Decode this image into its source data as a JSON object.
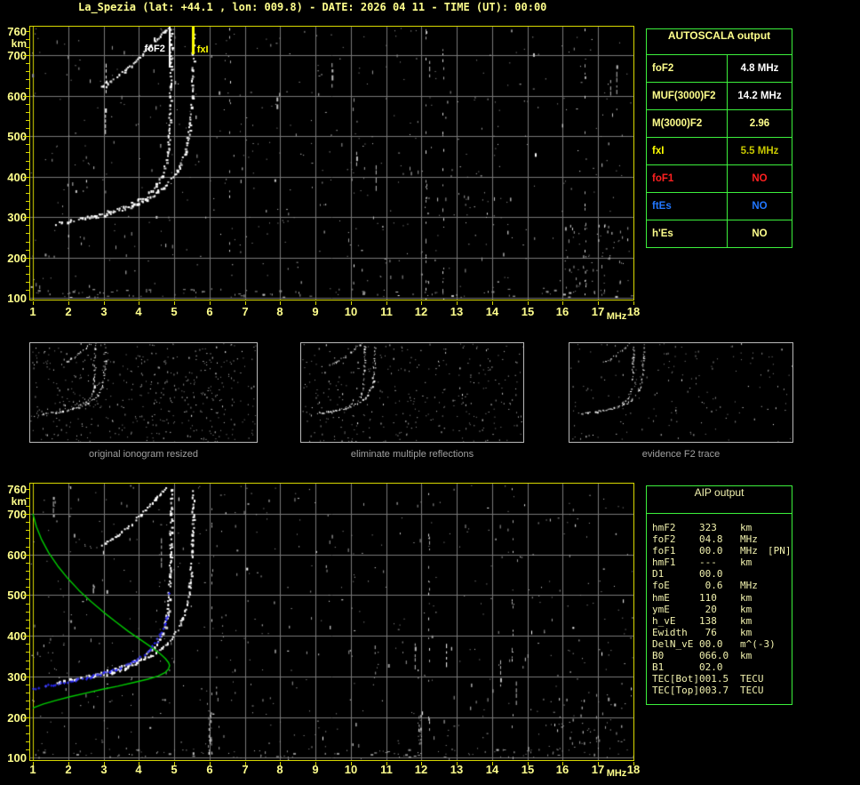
{
  "title": "La_Spezia (lat: +44.1 , lon: 009.8) - DATE: 2026 04 11 - TIME (UT): 00:00",
  "colors": {
    "background": "#000000",
    "title_yellow": "#ffff8c",
    "axis_yellow": "#ffff8c",
    "frame_yellow": "#d8d800",
    "grid_gray": "#787878",
    "table_border_green": "#3cf03c",
    "aip_text": "#f2f2ae",
    "value_white": "#ffffff",
    "alert_red": "#ff2020",
    "es_blue": "#2277ff",
    "fxi_gold": "#c8c800",
    "marker_yellow": "#ffff00",
    "trace_white": "#ffffff",
    "profile_green": "#00cc00",
    "restored_blue": "#2a2aff",
    "caption_gray": "#a0a0a0"
  },
  "autoscala_table": {
    "title": "AUTOSCALA output",
    "rows": [
      {
        "label": "foF2",
        "value": "4.8 MHz",
        "label_color": "#ffff8c",
        "value_color": "#ffffff"
      },
      {
        "label": "MUF(3000)F2",
        "value": "14.2 MHz",
        "label_color": "#ffff8c",
        "value_color": "#ffffff"
      },
      {
        "label": "M(3000)F2",
        "value": "2.96",
        "label_color": "#ffff8c",
        "value_color": "#ffff8c"
      },
      {
        "label": "fxI",
        "value": "5.5 MHz",
        "label_color": "#ffff00",
        "value_color": "#c8c800"
      },
      {
        "label": "foF1",
        "value": "NO",
        "label_color": "#ff2020",
        "value_color": "#ff2020"
      },
      {
        "label": "ftEs",
        "value": "NO",
        "label_color": "#2277ff",
        "value_color": "#2277ff"
      },
      {
        "label": "h'Es",
        "value": "NO",
        "label_color": "#ffff8c",
        "value_color": "#ffff8c"
      }
    ]
  },
  "aip_table": {
    "title": "AIP output",
    "rows": [
      {
        "label": "hmF2",
        "value": "323",
        "unit": "km",
        "extra": ""
      },
      {
        "label": "foF2",
        "value": "04.8",
        "unit": "MHz",
        "extra": ""
      },
      {
        "label": "foF1",
        "value": "00.0",
        "unit": "MHz",
        "extra": "[PN]"
      },
      {
        "label": "hmF1",
        "value": "---",
        "unit": "km",
        "extra": ""
      },
      {
        "label": "D1",
        "value": "00.0",
        "unit": "",
        "extra": ""
      },
      {
        "label": "foE",
        "value": " 0.6",
        "unit": "MHz",
        "extra": ""
      },
      {
        "label": "hmE",
        "value": "110",
        "unit": "km",
        "extra": ""
      },
      {
        "label": "ymE",
        "value": " 20",
        "unit": "km",
        "extra": ""
      },
      {
        "label": "h_vE",
        "value": "138",
        "unit": "km",
        "extra": ""
      },
      {
        "label": "Ewidth",
        "value": " 76",
        "unit": "km",
        "extra": ""
      },
      {
        "label": "DelN_vE",
        "value": "00.0",
        "unit": "m^(-3)",
        "extra": ""
      },
      {
        "label": "B0",
        "value": "066.0",
        "unit": "km",
        "extra": ""
      },
      {
        "label": "B1",
        "value": "02.0",
        "unit": "",
        "extra": ""
      },
      {
        "label": "TEC[Bot]",
        "value": "001.5",
        "unit": "TECU",
        "extra": ""
      },
      {
        "label": "TEC[Top]",
        "value": "003.7",
        "unit": "TECU",
        "extra": ""
      }
    ]
  },
  "thumbnails": [
    {
      "caption": "original ionogram resized"
    },
    {
      "caption": "eliminate multiple reflections"
    },
    {
      "caption": "evidence F2 trace"
    }
  ],
  "chart_data": {
    "type": "scatter",
    "x_label": "MHz",
    "y_label": "km",
    "x_range": [
      1,
      18
    ],
    "y_range": [
      100,
      760
    ],
    "x_ticks": [
      1,
      2,
      3,
      4,
      5,
      6,
      7,
      8,
      9,
      10,
      11,
      12,
      13,
      14,
      15,
      16,
      17,
      18
    ],
    "y_ticks": [
      760,
      700,
      600,
      500,
      400,
      300,
      200,
      100
    ],
    "grid": true,
    "markers": [
      {
        "label": "foF2",
        "freq_mhz": 4.87,
        "color": "#ffffff"
      },
      {
        "label": "fxI",
        "freq_mhz": 5.52,
        "color": "#ffff00"
      }
    ],
    "series": {
      "f2_trace_o_mode": {
        "color": "#ffffff",
        "points": [
          [
            1.65,
            286
          ],
          [
            1.9,
            291
          ],
          [
            2.2,
            296
          ],
          [
            2.5,
            301
          ],
          [
            2.8,
            307
          ],
          [
            3.1,
            314
          ],
          [
            3.4,
            322
          ],
          [
            3.7,
            332
          ],
          [
            4.0,
            344
          ],
          [
            4.25,
            359
          ],
          [
            4.45,
            377
          ],
          [
            4.6,
            398
          ],
          [
            4.72,
            425
          ],
          [
            4.8,
            460
          ],
          [
            4.84,
            505
          ],
          [
            4.86,
            560
          ],
          [
            4.88,
            630
          ],
          [
            4.9,
            700
          ],
          [
            4.91,
            768
          ]
        ]
      },
      "f2_trace_x_mode": {
        "color": "#ffffff",
        "points": [
          [
            2.6,
            300
          ],
          [
            2.9,
            305
          ],
          [
            3.2,
            311
          ],
          [
            3.5,
            319
          ],
          [
            3.8,
            329
          ],
          [
            4.1,
            341
          ],
          [
            4.4,
            356
          ],
          [
            4.7,
            375
          ],
          [
            4.95,
            399
          ],
          [
            5.15,
            428
          ],
          [
            5.3,
            463
          ],
          [
            5.4,
            505
          ],
          [
            5.46,
            560
          ],
          [
            5.5,
            625
          ],
          [
            5.52,
            695
          ],
          [
            5.53,
            760
          ]
        ]
      },
      "f2_second_hop": {
        "color": "#ffffff",
        "points": [
          [
            2.9,
            623
          ],
          [
            3.15,
            636
          ],
          [
            3.4,
            651
          ],
          [
            3.65,
            668
          ],
          [
            3.9,
            688
          ],
          [
            4.15,
            710
          ],
          [
            4.4,
            734
          ],
          [
            4.6,
            752
          ],
          [
            4.75,
            766
          ],
          [
            4.82,
            772
          ]
        ]
      },
      "electron_density_profile": {
        "color": "#00cc00",
        "points": [
          [
            1.0,
            700
          ],
          [
            1.1,
            668
          ],
          [
            1.25,
            636
          ],
          [
            1.45,
            604
          ],
          [
            1.7,
            572
          ],
          [
            2.0,
            540
          ],
          [
            2.3,
            512
          ],
          [
            2.65,
            484
          ],
          [
            3.0,
            458
          ],
          [
            3.35,
            434
          ],
          [
            3.7,
            411
          ],
          [
            4.05,
            390
          ],
          [
            4.35,
            372
          ],
          [
            4.6,
            356
          ],
          [
            4.75,
            344
          ],
          [
            4.84,
            334
          ],
          [
            4.87,
            327
          ],
          [
            4.84,
            318
          ],
          [
            4.75,
            310
          ],
          [
            4.55,
            301
          ],
          [
            4.25,
            293
          ],
          [
            3.85,
            285
          ],
          [
            3.4,
            276
          ],
          [
            2.95,
            268
          ],
          [
            2.5,
            259
          ],
          [
            2.05,
            250
          ],
          [
            1.65,
            241
          ],
          [
            1.3,
            232
          ],
          [
            1.05,
            224
          ],
          [
            1.0,
            222
          ]
        ]
      },
      "restored_trace": {
        "color": "#2a2aff",
        "points": [
          [
            1.0,
            271
          ],
          [
            1.2,
            274
          ],
          [
            1.45,
            278
          ],
          [
            1.7,
            282
          ],
          [
            2.0,
            287
          ],
          [
            2.3,
            293
          ],
          [
            2.6,
            299
          ],
          [
            2.9,
            306
          ],
          [
            3.2,
            314
          ],
          [
            3.5,
            323
          ],
          [
            3.8,
            335
          ],
          [
            4.05,
            348
          ],
          [
            4.3,
            365
          ],
          [
            4.5,
            385
          ],
          [
            4.65,
            408
          ],
          [
            4.75,
            432
          ],
          [
            4.81,
            455
          ]
        ],
        "isolated_point": [
          4.85,
          505
        ]
      }
    },
    "plots": [
      {
        "id": "top_ionogram",
        "shows": [
          "f2_trace_o_mode",
          "f2_trace_x_mode",
          "f2_second_hop"
        ],
        "has_markers": true
      },
      {
        "id": "bottom_ionogram",
        "shows": [
          "f2_trace_o_mode",
          "f2_trace_x_mode",
          "f2_second_hop",
          "electron_density_profile",
          "restored_trace"
        ],
        "has_markers": false
      }
    ]
  }
}
